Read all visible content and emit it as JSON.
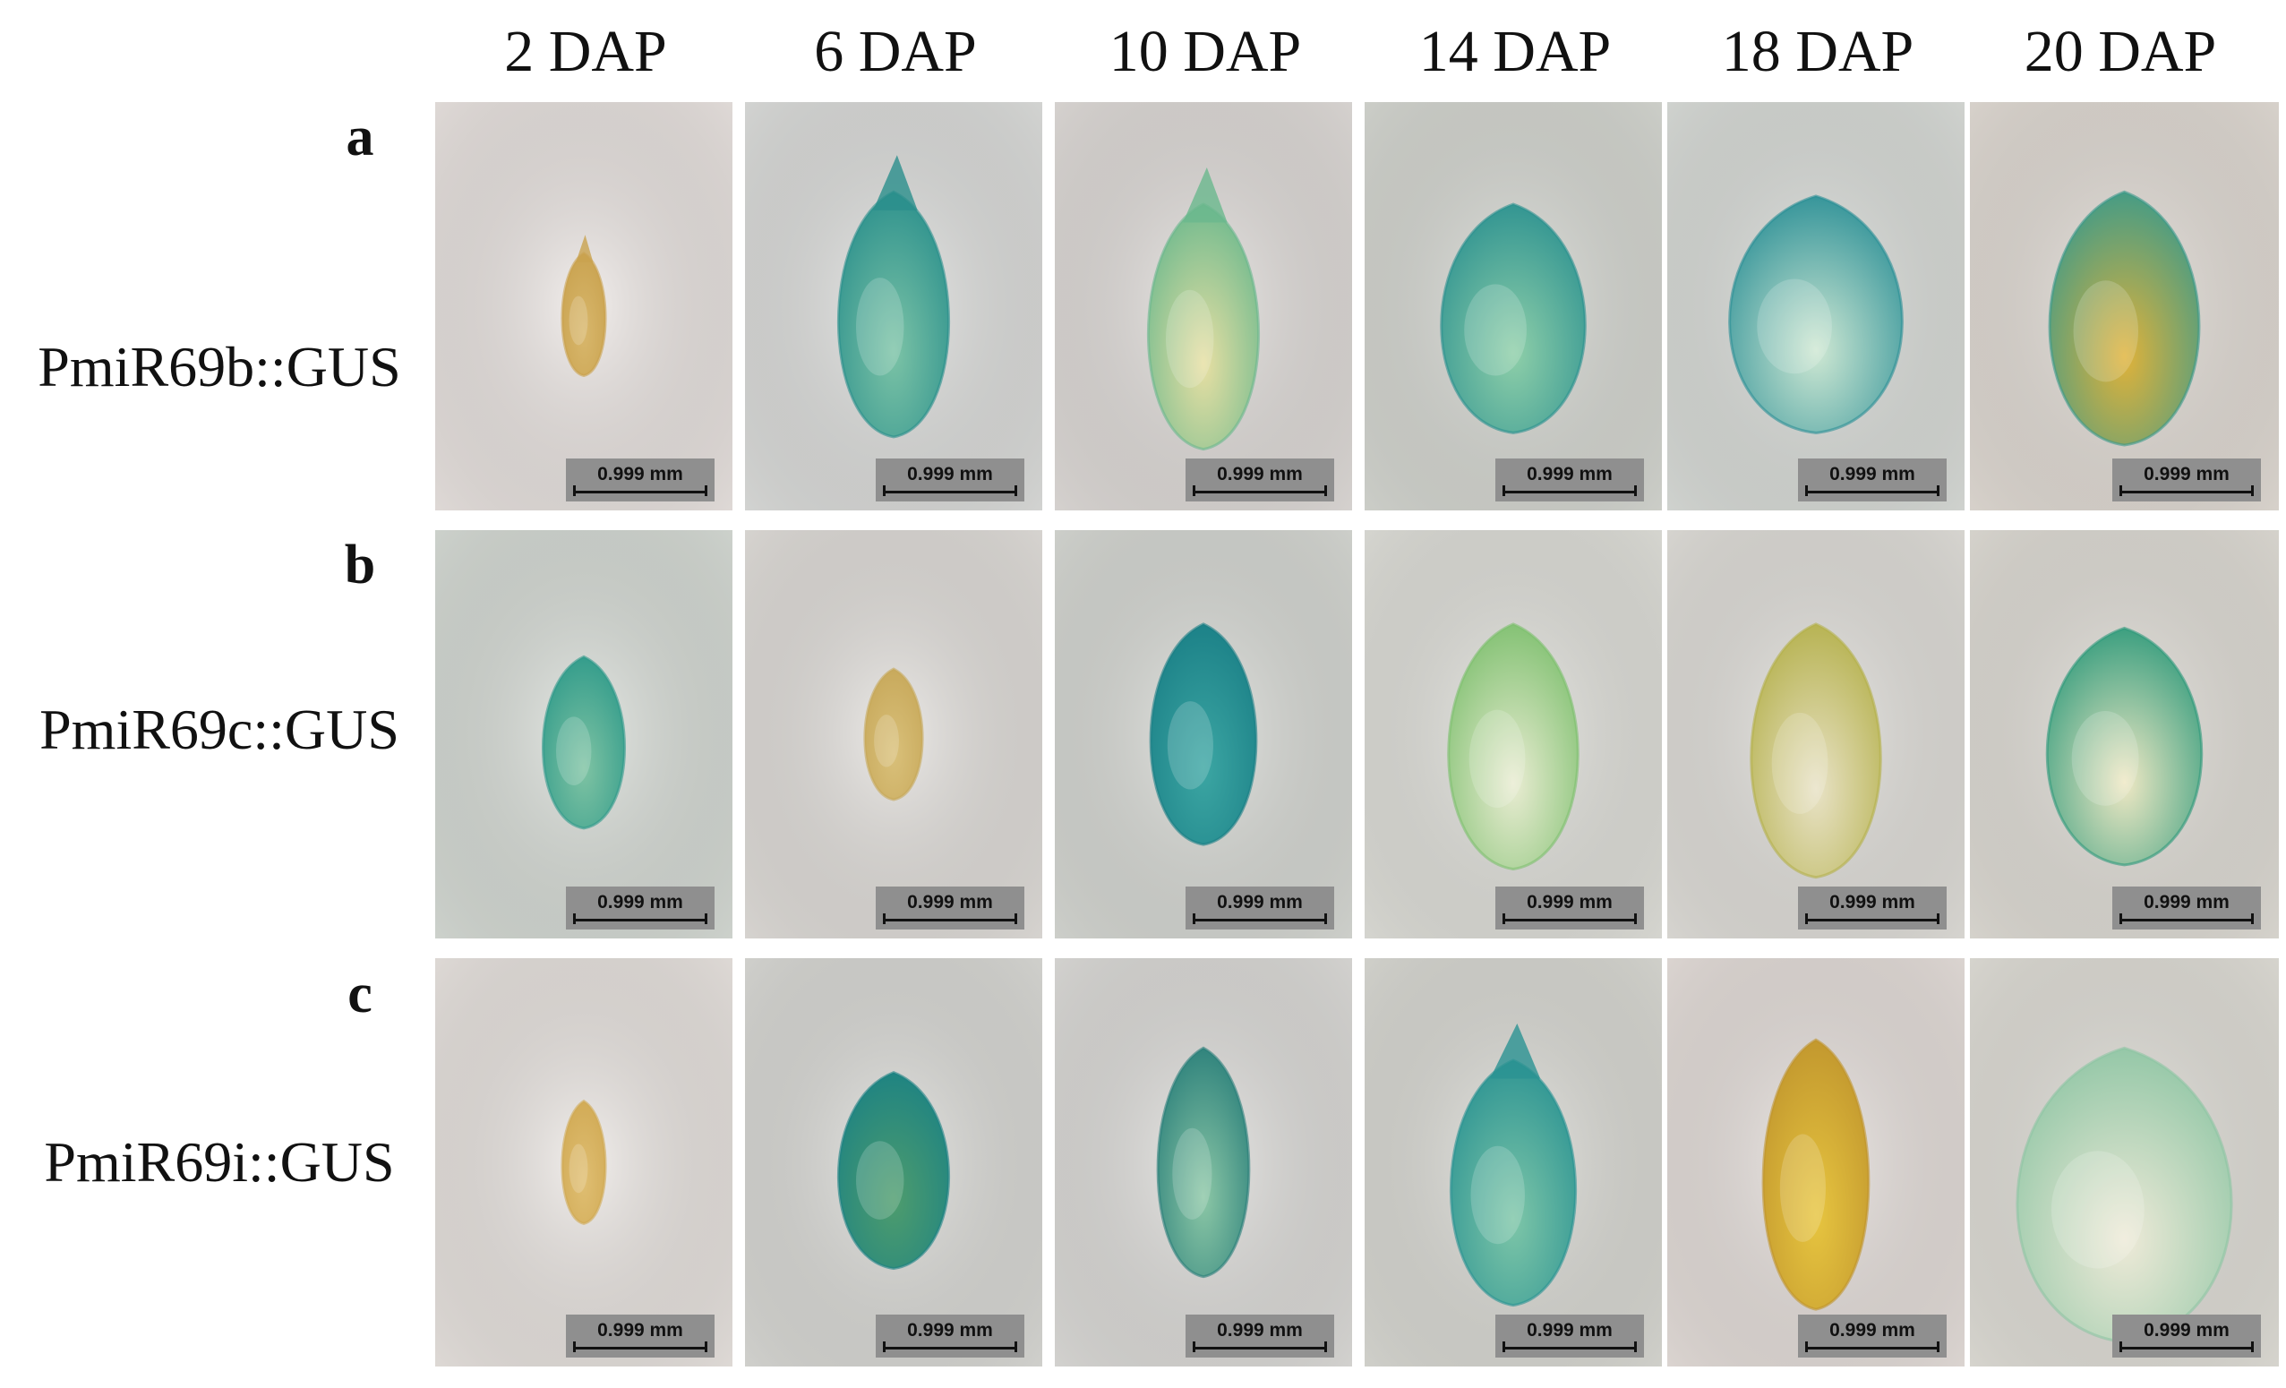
{
  "columns": [
    "2 DAP",
    "6 DAP",
    "10 DAP",
    "14 DAP",
    "18 DAP",
    "20 DAP"
  ],
  "rows": [
    {
      "letter": "a",
      "label": "PmiR69b::GUS"
    },
    {
      "letter": "b",
      "label": "PmiR69c::GUS"
    },
    {
      "letter": "c",
      "label": "PmiR69i::GUS"
    }
  ],
  "scale_bar_label": "0.999 mm",
  "colors": {
    "background_light": "#ede9e6",
    "gus_blue": "#1f8e8a",
    "seed_green": "#9cc9a4",
    "seed_yellow": "#d9b24a",
    "endosperm_white": "#e9ecd9"
  }
}
